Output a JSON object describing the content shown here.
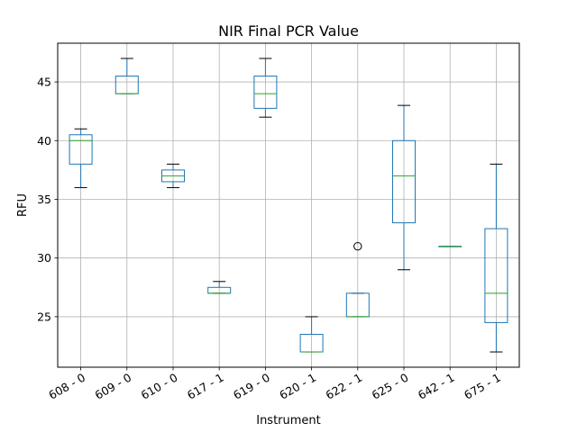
{
  "chart_data": {
    "type": "box",
    "title": "NIR Final PCR Value",
    "xlabel": "Instrument",
    "ylabel": "RFU",
    "ylim": [
      20.7,
      48.3
    ],
    "yticks": [
      25,
      30,
      35,
      40,
      45
    ],
    "grid": true,
    "colors": {
      "box": "#1f77b4",
      "median": "#2ca02c",
      "whisker_cap": "#000000",
      "grid": "#b0b0b0"
    },
    "categories": [
      "608 - 0",
      "609 - 0",
      "610 - 0",
      "617 - 1",
      "619 - 0",
      "620 - 1",
      "622 - 1",
      "625 - 0",
      "642 - 1",
      "675 - 1"
    ],
    "boxes": [
      {
        "category": "608 - 0",
        "whisker_low": 36,
        "q1": 38,
        "median": 40,
        "q3": 40.5,
        "whisker_high": 41,
        "outliers": []
      },
      {
        "category": "609 - 0",
        "whisker_low": 44,
        "q1": 44,
        "median": 44,
        "q3": 45.5,
        "whisker_high": 47,
        "outliers": []
      },
      {
        "category": "610 - 0",
        "whisker_low": 36,
        "q1": 36.5,
        "median": 37,
        "q3": 37.5,
        "whisker_high": 38,
        "outliers": []
      },
      {
        "category": "617 - 1",
        "whisker_low": 27,
        "q1": 27,
        "median": 27,
        "q3": 27.5,
        "whisker_high": 28,
        "outliers": []
      },
      {
        "category": "619 - 0",
        "whisker_low": 42,
        "q1": 42.75,
        "median": 44,
        "q3": 45.5,
        "whisker_high": 47,
        "outliers": []
      },
      {
        "category": "620 - 1",
        "whisker_low": 22,
        "q1": 22,
        "median": 22,
        "q3": 23.5,
        "whisker_high": 25,
        "outliers": []
      },
      {
        "category": "622 - 1",
        "whisker_low": 25,
        "q1": 25,
        "median": 25,
        "q3": 27,
        "whisker_high": 27,
        "outliers": [
          31
        ]
      },
      {
        "category": "625 - 0",
        "whisker_low": 29,
        "q1": 33,
        "median": 37,
        "q3": 40,
        "whisker_high": 43,
        "outliers": []
      },
      {
        "category": "642 - 1",
        "whisker_low": 31,
        "q1": 31,
        "median": 31,
        "q3": 31,
        "whisker_high": 31,
        "outliers": []
      },
      {
        "category": "675 - 1",
        "whisker_low": 22,
        "q1": 24.5,
        "median": 27,
        "q3": 32.5,
        "whisker_high": 38,
        "outliers": []
      }
    ]
  }
}
